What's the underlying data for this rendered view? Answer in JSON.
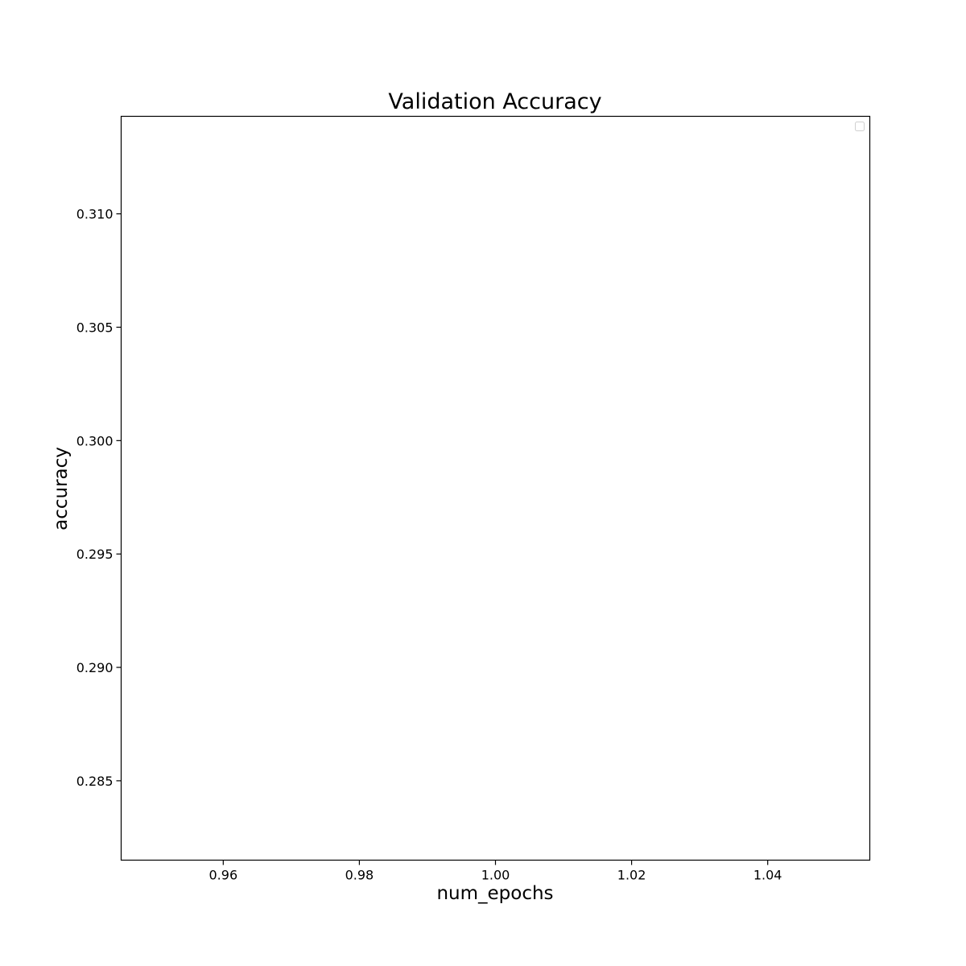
{
  "chart_data": {
    "type": "line",
    "title": "Validation Accuracy",
    "xlabel": "num_epochs",
    "ylabel": "accuracy",
    "xlim": [
      0.945,
      1.055
    ],
    "ylim": [
      0.2815,
      0.3143
    ],
    "xticks": [
      0.96,
      0.98,
      1.0,
      1.02,
      1.04
    ],
    "xtick_labels": [
      "0.96",
      "0.98",
      "1.00",
      "1.02",
      "1.04"
    ],
    "yticks": [
      0.285,
      0.29,
      0.295,
      0.3,
      0.305,
      0.31
    ],
    "ytick_labels": [
      "0.285",
      "0.290",
      "0.295",
      "0.300",
      "0.305",
      "0.310"
    ],
    "series": [],
    "grid": false,
    "legend": {
      "placement": "top-right",
      "entries": []
    }
  }
}
